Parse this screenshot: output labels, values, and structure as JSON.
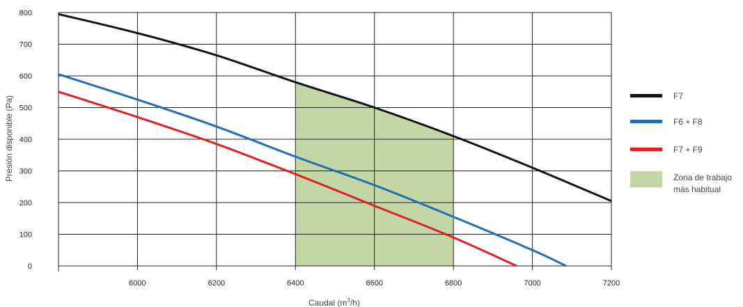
{
  "chart_data": {
    "type": "line",
    "x_axis": {
      "label": "Caudal (m",
      "label_sup": "3",
      "label_tail": "/h)",
      "min": 5800,
      "max": 7200,
      "ticks": [
        6000,
        6200,
        6400,
        6600,
        6800,
        7000,
        7200
      ]
    },
    "y_axis": {
      "label": "Presión disponible (Pa)",
      "min": 0,
      "max": 800,
      "ticks": [
        0,
        100,
        200,
        300,
        400,
        500,
        600,
        700,
        800
      ]
    },
    "grid": true,
    "legend_position": "right",
    "series": [
      {
        "name": "F7",
        "color": "#111111",
        "points": [
          [
            5800,
            795
          ],
          [
            6000,
            735
          ],
          [
            6200,
            665
          ],
          [
            6400,
            580
          ],
          [
            6600,
            500
          ],
          [
            6800,
            410
          ],
          [
            7000,
            310
          ],
          [
            7200,
            205
          ]
        ]
      },
      {
        "name": "F6 + F8",
        "color": "#1f6fb5",
        "points": [
          [
            5800,
            605
          ],
          [
            6000,
            525
          ],
          [
            6200,
            440
          ],
          [
            6400,
            345
          ],
          [
            6600,
            255
          ],
          [
            6800,
            155
          ],
          [
            7000,
            50
          ],
          [
            7085,
            0
          ]
        ]
      },
      {
        "name": "F7 + F9",
        "color": "#e31e24",
        "points": [
          [
            5800,
            550
          ],
          [
            6000,
            470
          ],
          [
            6200,
            385
          ],
          [
            6400,
            290
          ],
          [
            6600,
            190
          ],
          [
            6800,
            90
          ],
          [
            6960,
            0
          ]
        ]
      }
    ],
    "shaded_region": {
      "name_line1": "Zona de trabajo",
      "name_line2": "más habitual",
      "color": "#c3d6a6",
      "x_range": [
        6400,
        6800
      ],
      "upper_series": "F7"
    }
  }
}
